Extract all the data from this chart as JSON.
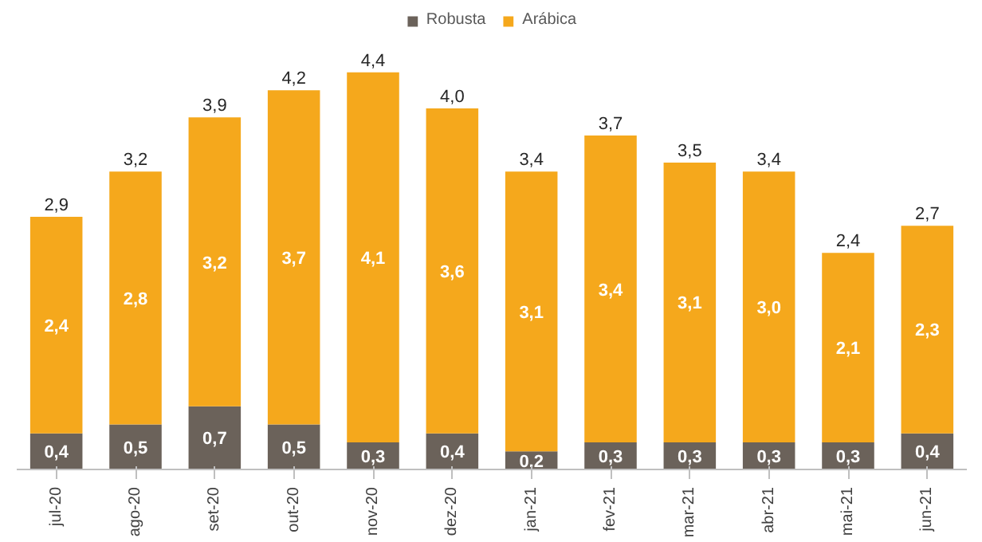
{
  "chart_data": {
    "type": "bar",
    "stacked": true,
    "legend": "top",
    "categories": [
      "jul-20",
      "ago-20",
      "set-20",
      "out-20",
      "nov-20",
      "dez-20",
      "jan-21",
      "fev-21",
      "mar-21",
      "abr-21",
      "mai-21",
      "jun-21"
    ],
    "series": [
      {
        "name": "Robusta",
        "color": "#6b625a",
        "values": [
          0.4,
          0.5,
          0.7,
          0.5,
          0.3,
          0.4,
          0.2,
          0.3,
          0.3,
          0.3,
          0.3,
          0.4
        ],
        "value_labels": [
          "0,4",
          "0,5",
          "0,7",
          "0,5",
          "0,3",
          "0,4",
          "0,2",
          "0,3",
          "0,3",
          "0,3",
          "0,3",
          "0,4"
        ]
      },
      {
        "name": "Arábica",
        "color": "#f5a81c",
        "values": [
          2.4,
          2.8,
          3.2,
          3.7,
          4.1,
          3.6,
          3.1,
          3.4,
          3.1,
          3.0,
          2.1,
          2.3
        ],
        "value_labels": [
          "2,4",
          "2,8",
          "3,2",
          "3,7",
          "4,1",
          "3,6",
          "3,1",
          "3,4",
          "3,1",
          "3,0",
          "2,1",
          "2,3"
        ]
      }
    ],
    "totals": [
      "2,9",
      "3,2",
      "3,9",
      "4,2",
      "4,4",
      "4,0",
      "3,4",
      "3,7",
      "3,5",
      "3,4",
      "2,4",
      "2,7"
    ]
  }
}
